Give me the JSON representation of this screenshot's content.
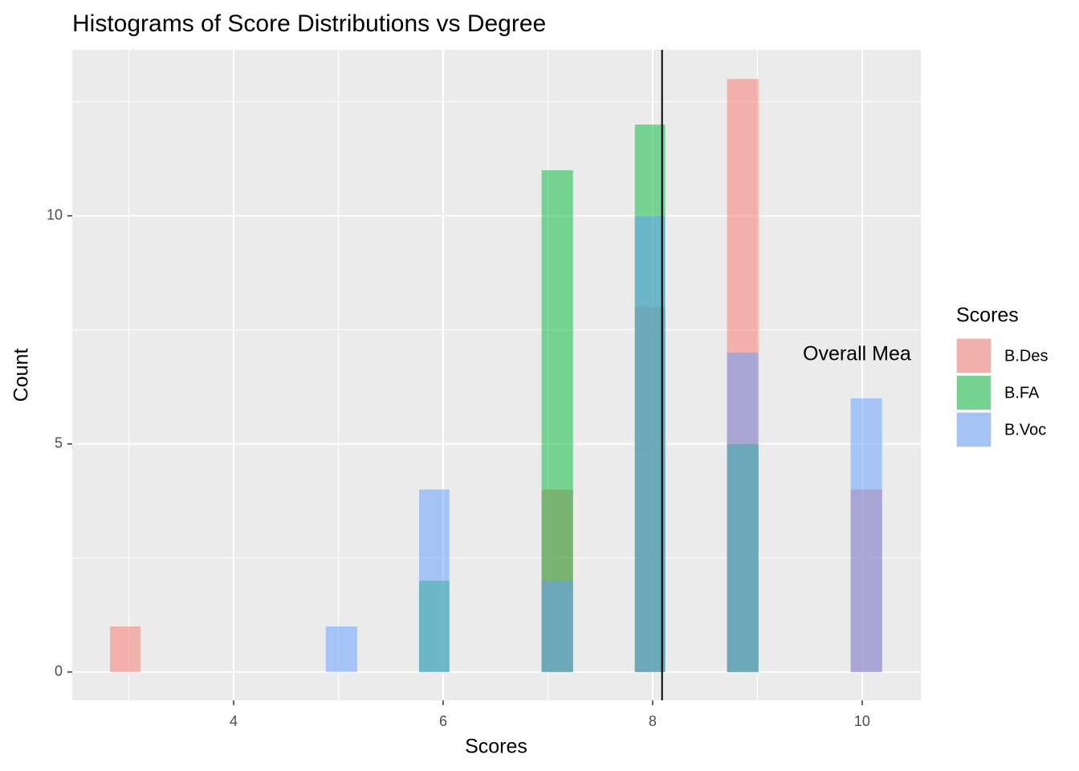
{
  "chart_data": {
    "type": "histogram",
    "title": "Histograms of Score Distributions vs Degree",
    "x_label": "Scores",
    "y_label": "Count",
    "bins": [
      2.82,
      3.11,
      3.41,
      3.7,
      4.0,
      4.29,
      4.59,
      4.88,
      5.18,
      5.47,
      5.77,
      6.06,
      6.36,
      6.65,
      6.94,
      7.24,
      7.53,
      7.83,
      8.12,
      8.42,
      8.71,
      9.01,
      9.3,
      9.6,
      9.89,
      10.19
    ],
    "series": [
      {
        "name": "B.Des",
        "color": "#F8766D",
        "values": [
          1,
          0,
          0,
          0,
          0,
          0,
          0,
          0,
          0,
          0,
          0,
          0,
          0,
          0,
          4,
          0,
          0,
          8,
          0,
          0,
          13,
          0,
          0,
          0,
          4
        ]
      },
      {
        "name": "B.FA",
        "color": "#00BA38",
        "values": [
          0,
          0,
          0,
          0,
          0,
          0,
          0,
          0,
          0,
          0,
          2,
          0,
          0,
          0,
          11,
          0,
          0,
          12,
          0,
          0,
          5,
          0,
          0,
          0,
          0
        ]
      },
      {
        "name": "B.Voc",
        "color": "#619CFF",
        "values": [
          0,
          0,
          0,
          0,
          0,
          0,
          0,
          1,
          0,
          0,
          4,
          0,
          0,
          0,
          2,
          0,
          0,
          10,
          0,
          0,
          7,
          0,
          0,
          0,
          6
        ]
      }
    ],
    "opacity": 0.5,
    "mean_line": 8.09,
    "annotation": "Overall Mea",
    "legend_title": "Scores",
    "xlim": [
      2.46,
      10.56
    ],
    "xticks": [
      4,
      6,
      8,
      10
    ],
    "ylim": [
      -0.62,
      13.64
    ],
    "yticks": [
      0,
      5,
      10
    ],
    "grid": true
  }
}
